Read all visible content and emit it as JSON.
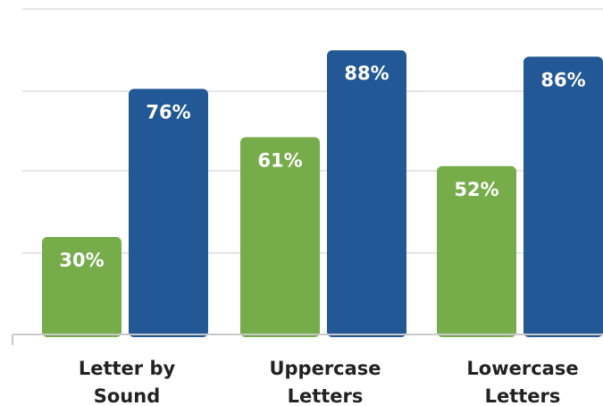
{
  "chart_data": {
    "type": "bar",
    "categories": [
      [
        "Letter by",
        "Sound"
      ],
      [
        "Uppercase",
        "Letters"
      ],
      [
        "Lowercase",
        "Letters"
      ]
    ],
    "series": [
      {
        "values": [
          30,
          61,
          52
        ],
        "labels": [
          "30%",
          "61%",
          "52%"
        ],
        "color": "#76ac4a"
      },
      {
        "values": [
          76,
          88,
          86
        ],
        "labels": [
          "76%",
          "88%",
          "86%"
        ],
        "color": "#225895"
      }
    ],
    "ylim": [
      0,
      100
    ],
    "grid": true,
    "legend": false
  }
}
